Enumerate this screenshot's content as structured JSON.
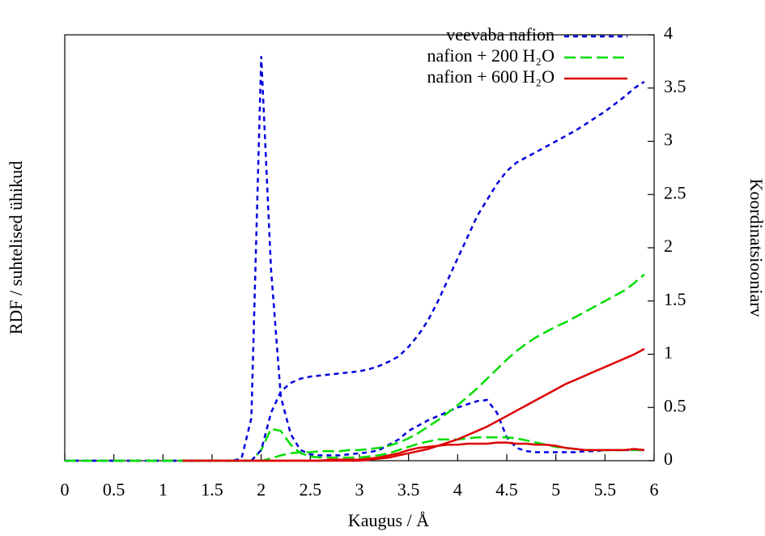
{
  "chart_data": {
    "type": "line",
    "xlabel": "Kaugus / Å",
    "ylabel": "RDF / suhtelised ühikud",
    "y2label": "Koordinatsiooniarv",
    "xlim": [
      0,
      6
    ],
    "xticks": [
      0,
      0.5,
      1,
      1.5,
      2,
      2.5,
      3,
      3.5,
      4,
      4.5,
      5,
      5.5,
      6
    ],
    "ylim": [
      0,
      4
    ],
    "y2lim": [
      0,
      4
    ],
    "y2ticks": [
      0,
      0.5,
      1,
      1.5,
      2,
      2.5,
      3,
      3.5,
      4
    ],
    "legend": "top-right",
    "x": [
      0,
      0.1,
      0.2,
      0.3,
      0.4,
      0.5,
      0.6,
      0.7,
      0.8,
      0.9,
      1,
      1.1,
      1.2,
      1.3,
      1.4,
      1.5,
      1.6,
      1.7,
      1.8,
      1.9,
      2,
      2.1,
      2.2,
      2.3,
      2.4,
      2.5,
      2.6,
      2.7,
      2.8,
      2.9,
      3,
      3.1,
      3.2,
      3.3,
      3.4,
      3.5,
      3.6,
      3.7,
      3.8,
      3.9,
      4,
      4.1,
      4.2,
      4.3,
      4.4,
      4.5,
      4.6,
      4.7,
      4.8,
      4.9,
      5,
      5.1,
      5.2,
      5.3,
      5.4,
      5.5,
      5.6,
      5.7,
      5.8,
      5.9
    ],
    "series": [
      {
        "name": "veevaba nafion",
        "color": "#0000dd",
        "dash": "6,5",
        "values": [
          0,
          0,
          0,
          0,
          0,
          0,
          0,
          0,
          0,
          0,
          0,
          0,
          0,
          0,
          0,
          0,
          0,
          0,
          0.02,
          0.4,
          3.8,
          1.8,
          0.6,
          0.25,
          0.1,
          0.06,
          0.05,
          0.05,
          0.05,
          0.06,
          0.07,
          0.08,
          0.1,
          0.15,
          0.2,
          0.28,
          0.33,
          0.38,
          0.42,
          0.46,
          0.5,
          0.53,
          0.56,
          0.57,
          0.45,
          0.22,
          0.12,
          0.09,
          0.08,
          0.08,
          0.08,
          0.08,
          0.08,
          0.09,
          0.09,
          0.1,
          0.1,
          0.1,
          0.1,
          0.1
        ]
      },
      {
        "name": "nafion + 200 H₂O",
        "color": "#00dd00",
        "dash": "14,6",
        "values": [
          0,
          0,
          0,
          0,
          0,
          0,
          0,
          0,
          0,
          0,
          0,
          0,
          0,
          0,
          0,
          0,
          0,
          0,
          0,
          0,
          0.1,
          0.3,
          0.28,
          0.15,
          0.07,
          0.04,
          0.03,
          0.03,
          0.03,
          0.03,
          0.03,
          0.04,
          0.05,
          0.07,
          0.1,
          0.13,
          0.16,
          0.18,
          0.2,
          0.2,
          0.2,
          0.21,
          0.22,
          0.22,
          0.22,
          0.22,
          0.21,
          0.19,
          0.17,
          0.15,
          0.13,
          0.12,
          0.11,
          0.1,
          0.1,
          0.1,
          0.1,
          0.1,
          0.1,
          0.1
        ]
      },
      {
        "name": "nafion + 600 H₂O",
        "color": "#dd0000",
        "dash": "none",
        "values": [
          null,
          null,
          null,
          null,
          null,
          null,
          null,
          null,
          null,
          null,
          null,
          null,
          0,
          0,
          0,
          0,
          0,
          0,
          0,
          0,
          0,
          0,
          0,
          0,
          0,
          0,
          0,
          0.01,
          0.01,
          0.01,
          0.01,
          0.02,
          0.03,
          0.05,
          0.07,
          0.1,
          0.12,
          0.13,
          0.14,
          0.15,
          0.15,
          0.16,
          0.16,
          0.16,
          0.17,
          0.17,
          0.16,
          0.16,
          0.15,
          0.15,
          0.14,
          0.12,
          0.11,
          0.1,
          0.1,
          0.1,
          0.1,
          0.1,
          0.11,
          0.1
        ]
      },
      {
        "axis": "y2",
        "color": "#0000dd",
        "dash": "6,5",
        "values": [
          0,
          0,
          0,
          0,
          0,
          0,
          0,
          0,
          0,
          0,
          0,
          0,
          0,
          0,
          0,
          0,
          0,
          0,
          0,
          0,
          0.1,
          0.45,
          0.65,
          0.73,
          0.77,
          0.79,
          0.8,
          0.81,
          0.82,
          0.83,
          0.84,
          0.86,
          0.89,
          0.93,
          0.98,
          1.07,
          1.18,
          1.32,
          1.5,
          1.7,
          1.9,
          2.1,
          2.3,
          2.45,
          2.6,
          2.72,
          2.8,
          2.85,
          2.9,
          2.95,
          3,
          3.05,
          3.1,
          3.16,
          3.22,
          3.28,
          3.35,
          3.42,
          3.5,
          3.56
        ]
      },
      {
        "axis": "y2",
        "color": "#00dd00",
        "dash": "14,6",
        "values": [
          0,
          0,
          0,
          0,
          0,
          0,
          0,
          0,
          0,
          0,
          0,
          0,
          0,
          0,
          0,
          0,
          0,
          0,
          0,
          0,
          0,
          0.02,
          0.05,
          0.07,
          0.08,
          0.08,
          0.09,
          0.09,
          0.09,
          0.1,
          0.1,
          0.11,
          0.12,
          0.14,
          0.17,
          0.21,
          0.26,
          0.32,
          0.38,
          0.45,
          0.52,
          0.6,
          0.68,
          0.77,
          0.86,
          0.95,
          1.03,
          1.1,
          1.16,
          1.21,
          1.26,
          1.3,
          1.35,
          1.4,
          1.45,
          1.5,
          1.55,
          1.6,
          1.67,
          1.75
        ]
      },
      {
        "axis": "y2",
        "color": "#dd0000",
        "dash": "none",
        "values": [
          null,
          null,
          null,
          null,
          null,
          null,
          null,
          null,
          null,
          null,
          null,
          null,
          0,
          0,
          0,
          0,
          0,
          0,
          0,
          0,
          0,
          0,
          0,
          0,
          0,
          0,
          0,
          0,
          0,
          0,
          0,
          0.01,
          0.02,
          0.03,
          0.05,
          0.07,
          0.09,
          0.11,
          0.14,
          0.17,
          0.2,
          0.24,
          0.28,
          0.32,
          0.37,
          0.42,
          0.47,
          0.52,
          0.57,
          0.62,
          0.67,
          0.72,
          0.76,
          0.8,
          0.84,
          0.88,
          0.92,
          0.96,
          1,
          1.05
        ]
      }
    ]
  }
}
